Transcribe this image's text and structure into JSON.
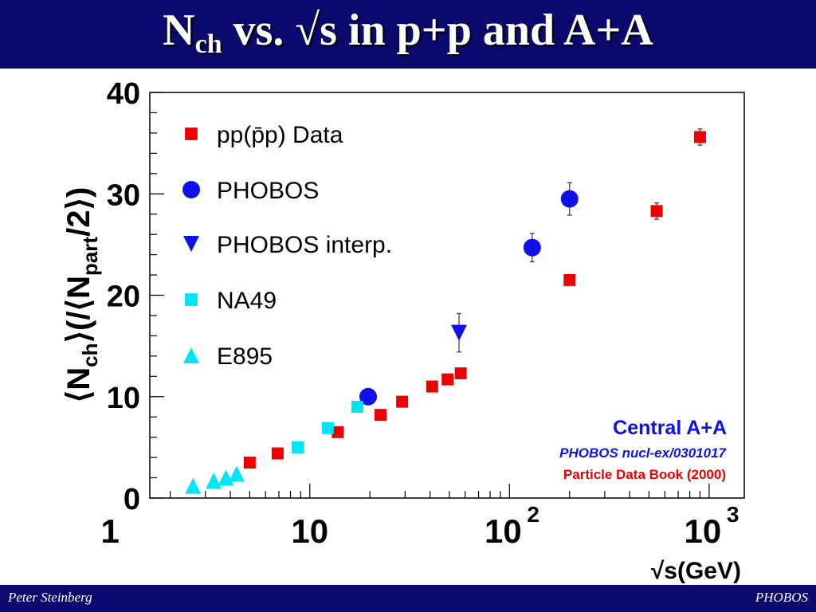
{
  "slide": {
    "title_main": "N",
    "title_sub": "ch",
    "title_rest": " vs. √s in p+p and A+A",
    "footer_left": "Peter Steinberg",
    "footer_right": "PHOBOS"
  },
  "colors": {
    "banner": "#0a0a6e",
    "red": "#ee0000",
    "blue": "#1010e8",
    "cyan": "#00e5f5"
  },
  "chart_data": {
    "type": "scatter",
    "x_scale": "log",
    "xlim": [
      1.58,
      1500
    ],
    "ylim": [
      0,
      40
    ],
    "y_ticks": [
      "0",
      "10",
      "20",
      "30",
      "40"
    ],
    "x_ticks": [
      "1",
      "10",
      "10",
      "10"
    ],
    "x_tick_exponents": [
      "",
      "",
      "2",
      "3"
    ],
    "xlabel": "√s(GeV)",
    "ylabel_parts": [
      "⟨N",
      "ch",
      "⟩(/⟨N",
      "part",
      "/2⟩)"
    ],
    "annotations": {
      "line1": "Central A+A",
      "line2": "PHOBOS nucl-ex/0301017",
      "line3": "Particle Data Book (2000)"
    },
    "series": [
      {
        "name": "pp(p̄p) Data",
        "marker": "square",
        "color": "#ee0000",
        "points": [
          {
            "x": 5.0,
            "y": 3.5
          },
          {
            "x": 6.9,
            "y": 4.4
          },
          {
            "x": 13.8,
            "y": 6.5
          },
          {
            "x": 22.6,
            "y": 8.2
          },
          {
            "x": 29.0,
            "y": 9.5
          },
          {
            "x": 41.0,
            "y": 11.0
          },
          {
            "x": 49.0,
            "y": 11.7
          },
          {
            "x": 57.0,
            "y": 12.3
          },
          {
            "x": 200.0,
            "y": 21.5
          },
          {
            "x": 546.0,
            "y": 28.3,
            "err": 0.8
          },
          {
            "x": 900.0,
            "y": 35.6,
            "err": 0.8
          }
        ]
      },
      {
        "name": "PHOBOS",
        "marker": "circle",
        "color": "#1010e8",
        "points": [
          {
            "x": 19.6,
            "y": 10.0
          },
          {
            "x": 130.0,
            "y": 24.7,
            "err": 1.4
          },
          {
            "x": 200.0,
            "y": 29.5,
            "err": 1.6
          }
        ]
      },
      {
        "name": "PHOBOS interp.",
        "marker": "triangle-down",
        "color": "#1010e8",
        "points": [
          {
            "x": 55.9,
            "y": 16.3,
            "err": 1.9
          }
        ]
      },
      {
        "name": "NA49",
        "marker": "square",
        "color": "#00e5f5",
        "points": [
          {
            "x": 8.7,
            "y": 5.0
          },
          {
            "x": 12.3,
            "y": 6.9
          },
          {
            "x": 17.3,
            "y": 9.0
          }
        ]
      },
      {
        "name": "E895",
        "marker": "triangle-up",
        "color": "#00e5f5",
        "points": [
          {
            "x": 2.6,
            "y": 1.2
          },
          {
            "x": 3.3,
            "y": 1.7
          },
          {
            "x": 3.8,
            "y": 2.0
          },
          {
            "x": 4.3,
            "y": 2.4
          }
        ]
      }
    ]
  }
}
